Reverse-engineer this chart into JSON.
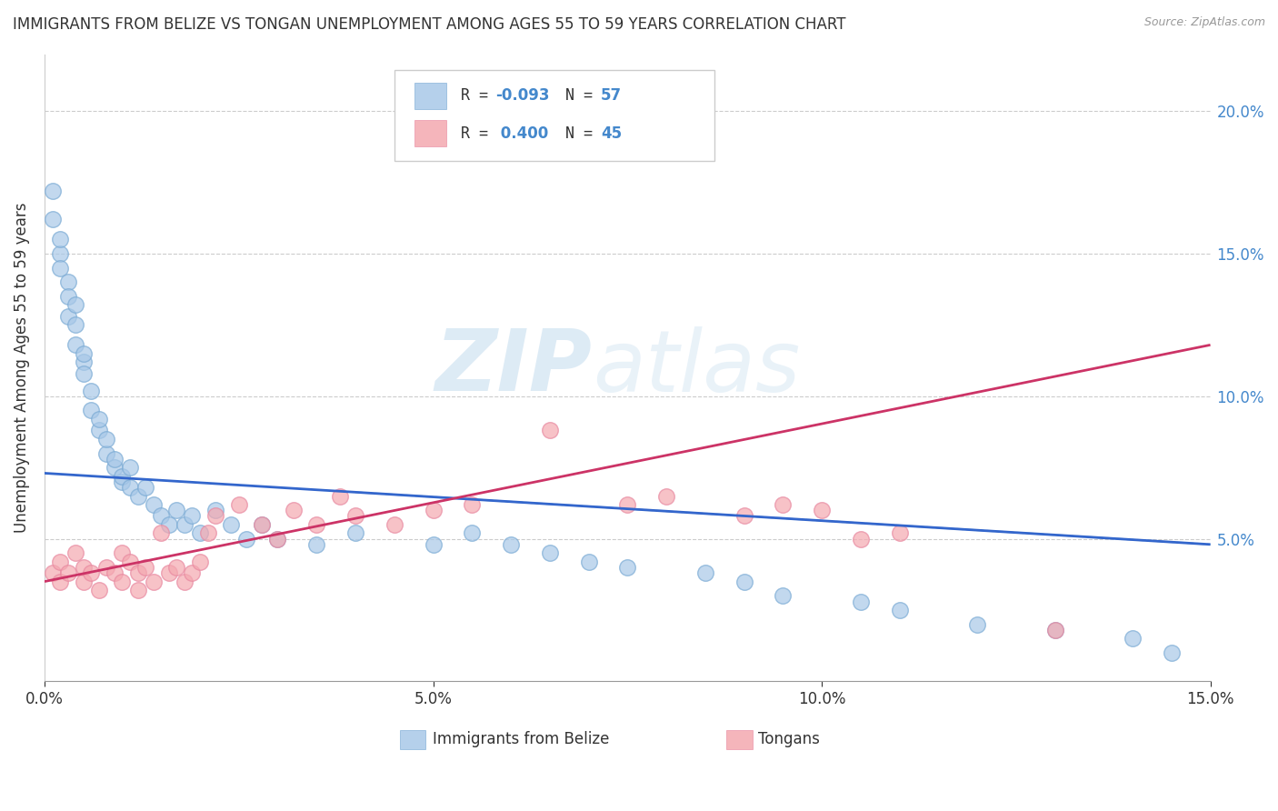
{
  "title": "IMMIGRANTS FROM BELIZE VS TONGAN UNEMPLOYMENT AMONG AGES 55 TO 59 YEARS CORRELATION CHART",
  "source": "Source: ZipAtlas.com",
  "ylabel": "Unemployment Among Ages 55 to 59 years",
  "legend_labels": [
    "Immigrants from Belize",
    "Tongans"
  ],
  "R_blue": -0.093,
  "N_blue": 57,
  "R_pink": 0.4,
  "N_pink": 45,
  "blue_color": "#a8c8e8",
  "pink_color": "#f4a8b0",
  "blue_line_color": "#3366cc",
  "pink_line_color": "#cc3366",
  "xlim": [
    0.0,
    0.15
  ],
  "ylim": [
    0.0,
    0.22
  ],
  "xtick_vals": [
    0.0,
    0.05,
    0.1,
    0.15
  ],
  "xtick_labels": [
    "0.0%",
    "5.0%",
    "10.0%",
    "15.0%"
  ],
  "ytick_vals": [
    0.05,
    0.1,
    0.15,
    0.2
  ],
  "ytick_labels": [
    "5.0%",
    "10.0%",
    "15.0%",
    "20.0%"
  ],
  "blue_line_x0": 0.0,
  "blue_line_y0": 0.073,
  "blue_line_x1": 0.15,
  "blue_line_y1": 0.048,
  "pink_line_x0": 0.0,
  "pink_line_y0": 0.035,
  "pink_line_x1": 0.15,
  "pink_line_y1": 0.118,
  "blue_scatter_x": [
    0.001,
    0.001,
    0.002,
    0.002,
    0.002,
    0.003,
    0.003,
    0.003,
    0.004,
    0.004,
    0.004,
    0.005,
    0.005,
    0.005,
    0.006,
    0.006,
    0.007,
    0.007,
    0.008,
    0.008,
    0.009,
    0.009,
    0.01,
    0.01,
    0.011,
    0.011,
    0.012,
    0.013,
    0.014,
    0.015,
    0.016,
    0.017,
    0.018,
    0.019,
    0.02,
    0.022,
    0.024,
    0.026,
    0.028,
    0.03,
    0.035,
    0.04,
    0.05,
    0.055,
    0.06,
    0.065,
    0.07,
    0.075,
    0.085,
    0.09,
    0.095,
    0.105,
    0.11,
    0.12,
    0.13,
    0.14,
    0.145
  ],
  "blue_scatter_y": [
    0.172,
    0.162,
    0.15,
    0.155,
    0.145,
    0.14,
    0.135,
    0.128,
    0.125,
    0.132,
    0.118,
    0.112,
    0.108,
    0.115,
    0.102,
    0.095,
    0.088,
    0.092,
    0.08,
    0.085,
    0.075,
    0.078,
    0.07,
    0.072,
    0.068,
    0.075,
    0.065,
    0.068,
    0.062,
    0.058,
    0.055,
    0.06,
    0.055,
    0.058,
    0.052,
    0.06,
    0.055,
    0.05,
    0.055,
    0.05,
    0.048,
    0.052,
    0.048,
    0.052,
    0.048,
    0.045,
    0.042,
    0.04,
    0.038,
    0.035,
    0.03,
    0.028,
    0.025,
    0.02,
    0.018,
    0.015,
    0.01
  ],
  "pink_scatter_x": [
    0.001,
    0.002,
    0.002,
    0.003,
    0.004,
    0.005,
    0.005,
    0.006,
    0.007,
    0.008,
    0.009,
    0.01,
    0.01,
    0.011,
    0.012,
    0.012,
    0.013,
    0.014,
    0.015,
    0.016,
    0.017,
    0.018,
    0.019,
    0.02,
    0.021,
    0.022,
    0.025,
    0.028,
    0.03,
    0.032,
    0.035,
    0.038,
    0.04,
    0.045,
    0.05,
    0.055,
    0.065,
    0.075,
    0.08,
    0.09,
    0.095,
    0.1,
    0.105,
    0.11,
    0.13
  ],
  "pink_scatter_y": [
    0.038,
    0.042,
    0.035,
    0.038,
    0.045,
    0.04,
    0.035,
    0.038,
    0.032,
    0.04,
    0.038,
    0.045,
    0.035,
    0.042,
    0.038,
    0.032,
    0.04,
    0.035,
    0.052,
    0.038,
    0.04,
    0.035,
    0.038,
    0.042,
    0.052,
    0.058,
    0.062,
    0.055,
    0.05,
    0.06,
    0.055,
    0.065,
    0.058,
    0.055,
    0.06,
    0.062,
    0.088,
    0.062,
    0.065,
    0.058,
    0.062,
    0.06,
    0.05,
    0.052,
    0.018
  ],
  "watermark_zip": "ZIP",
  "watermark_atlas": "atlas",
  "background_color": "#ffffff",
  "title_fontsize": 12,
  "axis_label_fontsize": 12,
  "tick_fontsize": 12,
  "legend_fontsize": 12,
  "right_tick_color": "#4488cc",
  "stat_color": "#4488cc"
}
